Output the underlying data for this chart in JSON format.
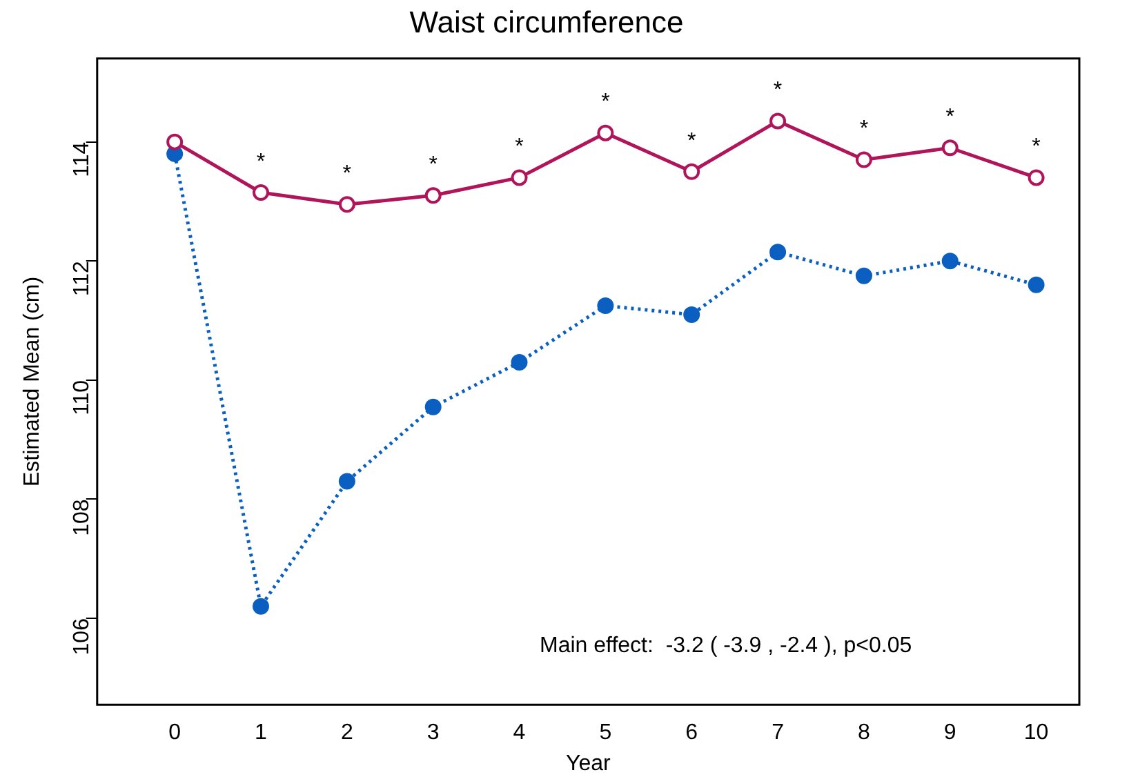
{
  "chart_data": {
    "type": "line",
    "title": "Waist circumference",
    "xlabel": "Year",
    "ylabel": "Estimated Mean (cm)",
    "x": [
      0,
      1,
      2,
      3,
      4,
      5,
      6,
      7,
      8,
      9,
      10
    ],
    "series": [
      {
        "color": "#b0155a",
        "line_style": "solid",
        "values": [
          114.0,
          113.15,
          112.95,
          113.1,
          113.4,
          114.15,
          113.5,
          114.35,
          113.7,
          113.9,
          113.4
        ]
      },
      {
        "color": "#0a5fc0",
        "line_style": "dotted",
        "values": [
          113.8,
          106.2,
          108.3,
          109.55,
          110.3,
          111.25,
          111.1,
          112.15,
          111.75,
          112.0,
          111.6
        ]
      }
    ],
    "xlim": [
      -0.9,
      10.5
    ],
    "xticks": [
      0,
      1,
      2,
      3,
      4,
      5,
      6,
      7,
      8,
      9,
      10
    ],
    "ylim": [
      104.55,
      115.4
    ],
    "yticks": [
      106,
      108,
      110,
      112,
      114
    ],
    "grid": false,
    "legend": false,
    "marker": "circle",
    "annotations": [
      {
        "text": "*",
        "x": 1,
        "y": 113.15
      },
      {
        "text": "*",
        "x": 2,
        "y": 112.95
      },
      {
        "text": "*",
        "x": 3,
        "y": 113.1
      },
      {
        "text": "*",
        "x": 4,
        "y": 113.4
      },
      {
        "text": "*",
        "x": 5,
        "y": 114.15
      },
      {
        "text": "*",
        "x": 6,
        "y": 113.5
      },
      {
        "text": "*",
        "x": 7,
        "y": 114.35
      },
      {
        "text": "*",
        "x": 8,
        "y": 113.7
      },
      {
        "text": "*",
        "x": 9,
        "y": 113.9
      },
      {
        "text": "*",
        "x": 10,
        "y": 113.4
      },
      "Main effect:  -3.2 ( -3.9 , -2.4 ), p<0.05"
    ]
  }
}
